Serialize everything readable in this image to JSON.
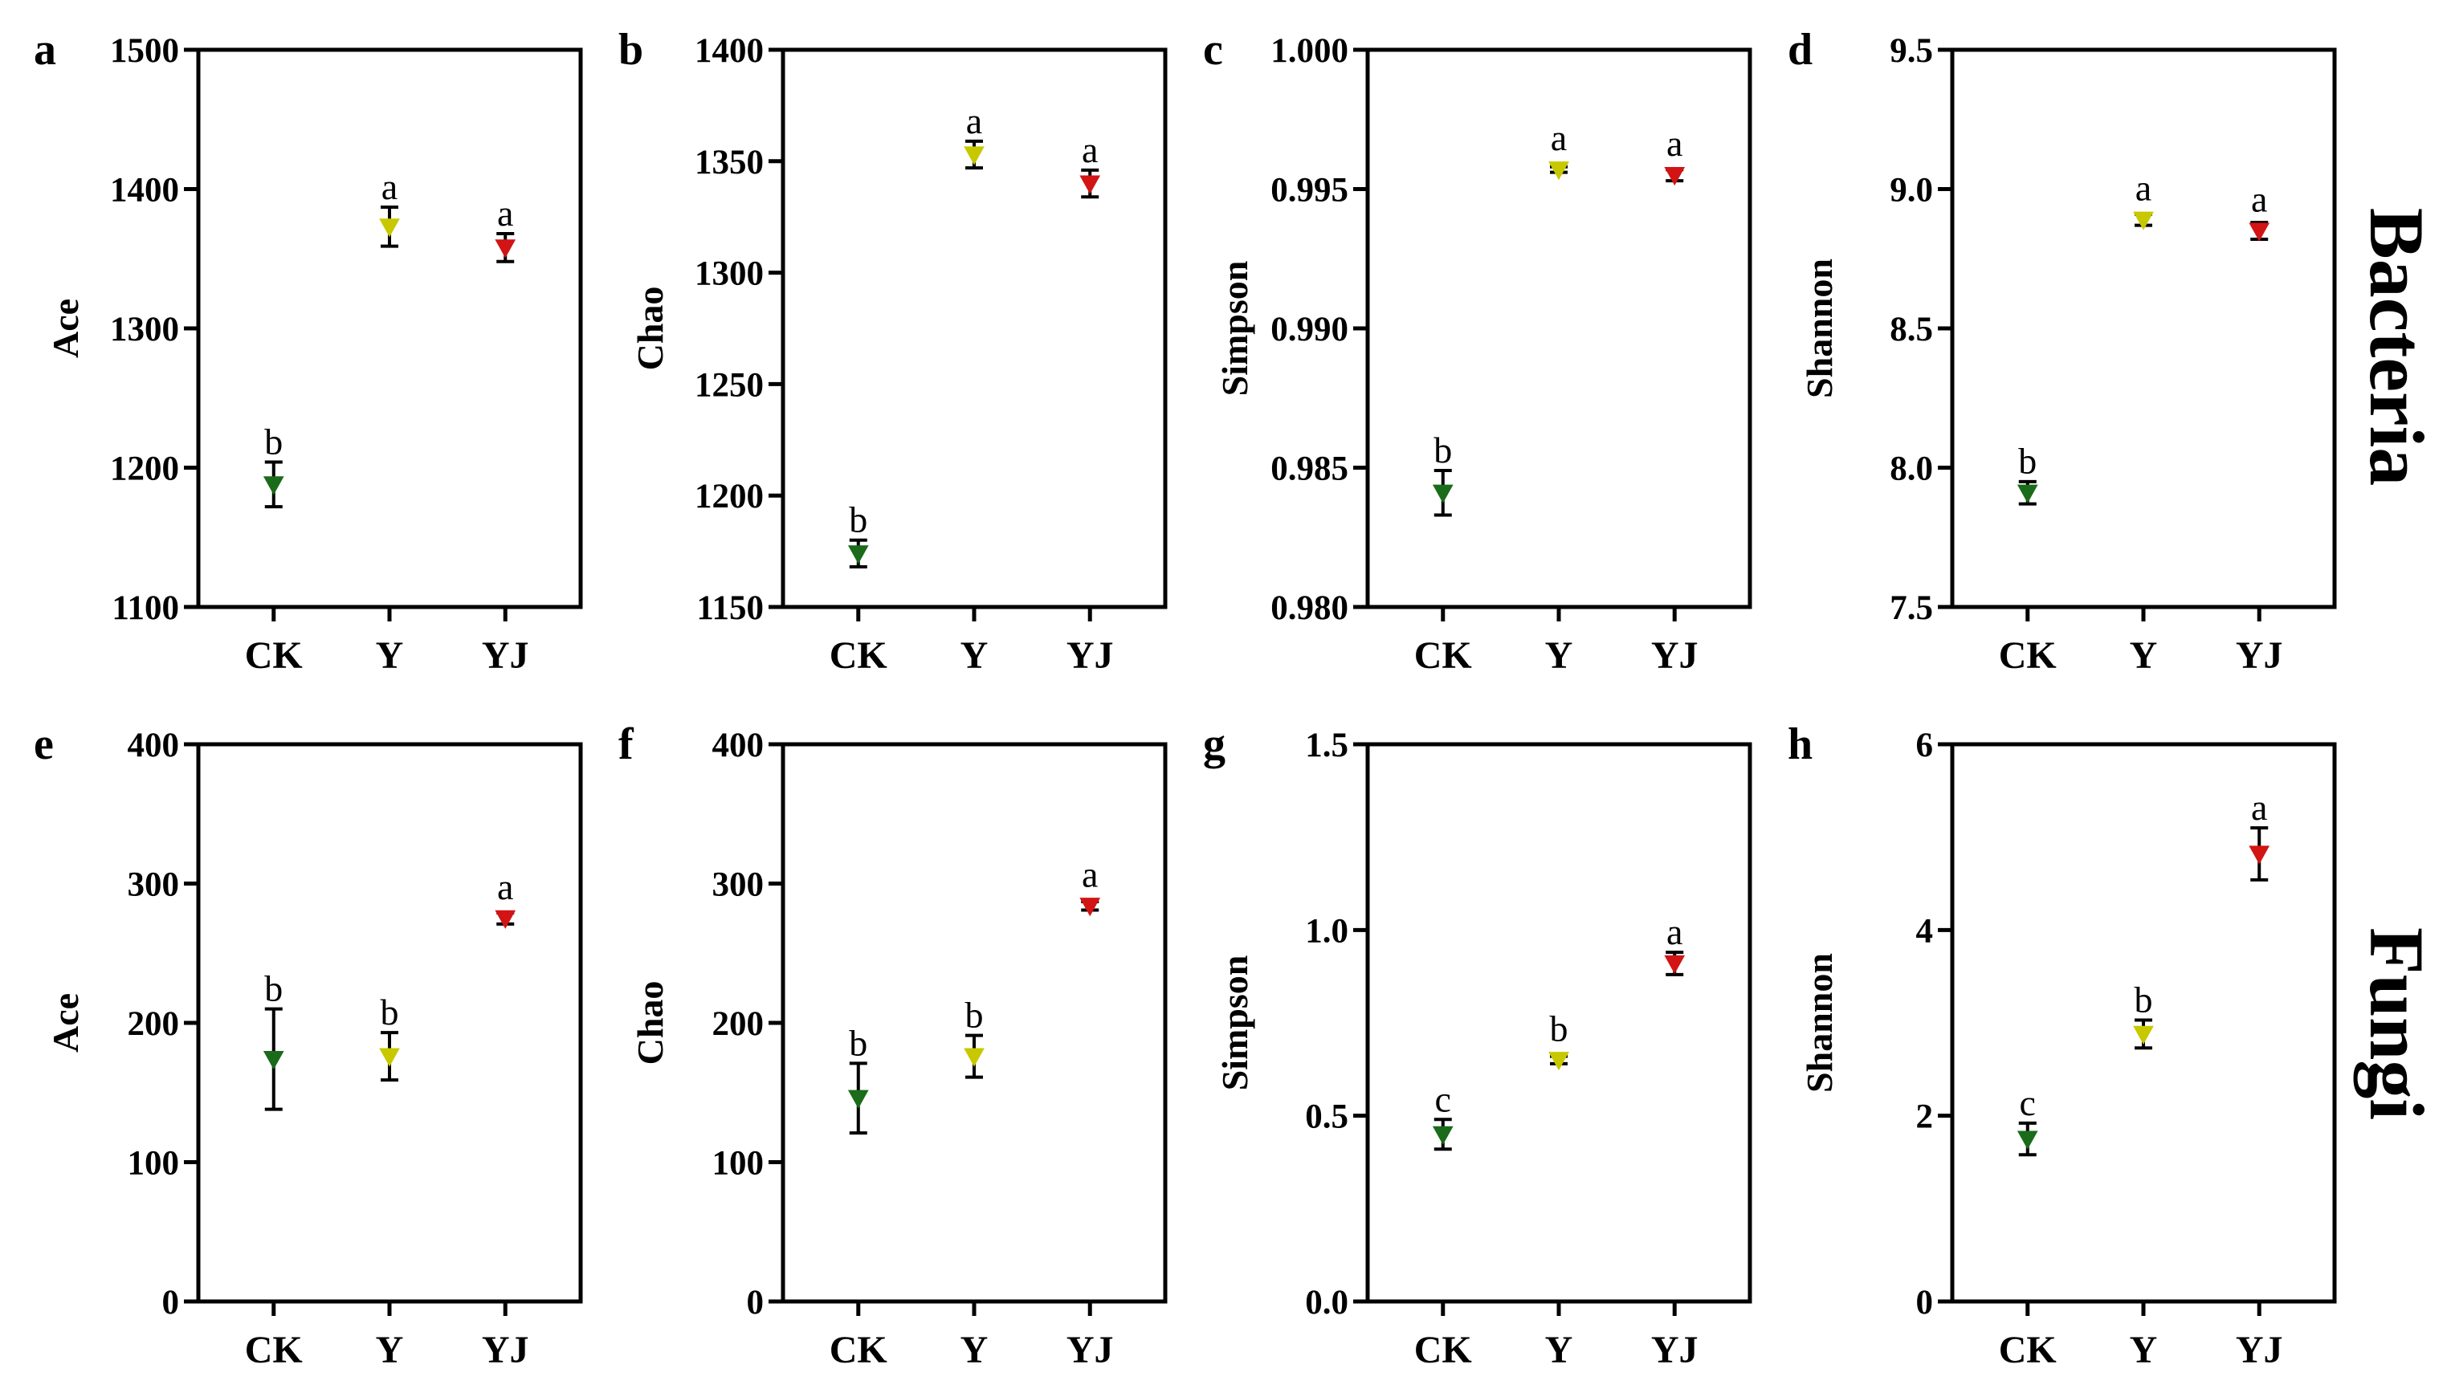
{
  "row_labels": [
    "Bacteria",
    "Fungi"
  ],
  "colors": {
    "CK": "#1a6b1a",
    "Y": "#c8c800",
    "YJ": "#d21414"
  },
  "chart_data": [
    {
      "type": "scatter",
      "panel": "a",
      "ylabel": "Ace",
      "ylim": [
        1100,
        1500
      ],
      "yticks": [
        "1100",
        "1200",
        "1300",
        "1400",
        "1500"
      ],
      "categories": [
        "CK",
        "Y",
        "YJ"
      ],
      "values": [
        1188,
        1373,
        1358
      ],
      "errors": [
        16,
        14,
        10
      ],
      "letters": [
        "b",
        "a",
        "a"
      ]
    },
    {
      "type": "scatter",
      "panel": "b",
      "ylabel": "Chao",
      "ylim": [
        1150,
        1400
      ],
      "yticks": [
        "1150",
        "1200",
        "1250",
        "1300",
        "1350",
        "1400"
      ],
      "categories": [
        "CK",
        "Y",
        "YJ"
      ],
      "values": [
        1174,
        1353,
        1340
      ],
      "errors": [
        6,
        6,
        6
      ],
      "letters": [
        "b",
        "a",
        "a"
      ]
    },
    {
      "type": "scatter",
      "panel": "c",
      "ylabel": "Simpson",
      "ylim": [
        0.98,
        1.0
      ],
      "yticks": [
        "0.980",
        "0.985",
        "0.990",
        "0.995",
        "1.000"
      ],
      "categories": [
        "CK",
        "Y",
        "YJ"
      ],
      "values": [
        0.9841,
        0.9957,
        0.9955
      ],
      "errors": [
        0.0008,
        0.0001,
        0.0002
      ],
      "letters": [
        "b",
        "a",
        "a"
      ]
    },
    {
      "type": "scatter",
      "panel": "d",
      "ylabel": "Shannon",
      "ylim": [
        7.5,
        9.5
      ],
      "yticks": [
        "7.5",
        "8.0",
        "8.5",
        "9.0",
        "9.5"
      ],
      "categories": [
        "CK",
        "Y",
        "YJ"
      ],
      "values": [
        7.91,
        8.89,
        8.85
      ],
      "errors": [
        0.04,
        0.02,
        0.03
      ],
      "letters": [
        "b",
        "a",
        "a"
      ]
    },
    {
      "type": "scatter",
      "panel": "e",
      "ylabel": "Ace",
      "ylim": [
        0,
        400
      ],
      "yticks": [
        "0",
        "100",
        "200",
        "300",
        "400"
      ],
      "categories": [
        "CK",
        "Y",
        "YJ"
      ],
      "values": [
        174,
        176,
        275
      ],
      "errors": [
        36,
        17,
        4
      ],
      "letters": [
        "b",
        "b",
        "a"
      ]
    },
    {
      "type": "scatter",
      "panel": "f",
      "ylabel": "Chao",
      "ylim": [
        0,
        400
      ],
      "yticks": [
        "0",
        "100",
        "200",
        "300",
        "400"
      ],
      "categories": [
        "CK",
        "Y",
        "YJ"
      ],
      "values": [
        146,
        176,
        284
      ],
      "errors": [
        25,
        15,
        3
      ],
      "letters": [
        "b",
        "b",
        "a"
      ]
    },
    {
      "type": "scatter",
      "panel": "g",
      "ylabel": "Simpson",
      "ylim": [
        0,
        1.5
      ],
      "yticks": [
        "0.0",
        "0.5",
        "1.0",
        "1.5"
      ],
      "categories": [
        "CK",
        "Y",
        "YJ"
      ],
      "values": [
        0.45,
        0.65,
        0.91
      ],
      "errors": [
        0.04,
        0.01,
        0.03
      ],
      "letters": [
        "c",
        "b",
        "a"
      ]
    },
    {
      "type": "scatter",
      "panel": "h",
      "ylabel": "Shannon",
      "ylim": [
        0,
        6
      ],
      "yticks": [
        "0",
        "2",
        "4",
        "6"
      ],
      "categories": [
        "CK",
        "Y",
        "YJ"
      ],
      "values": [
        1.75,
        2.88,
        4.82
      ],
      "errors": [
        0.17,
        0.15,
        0.28
      ],
      "letters": [
        "c",
        "b",
        "a"
      ]
    }
  ]
}
